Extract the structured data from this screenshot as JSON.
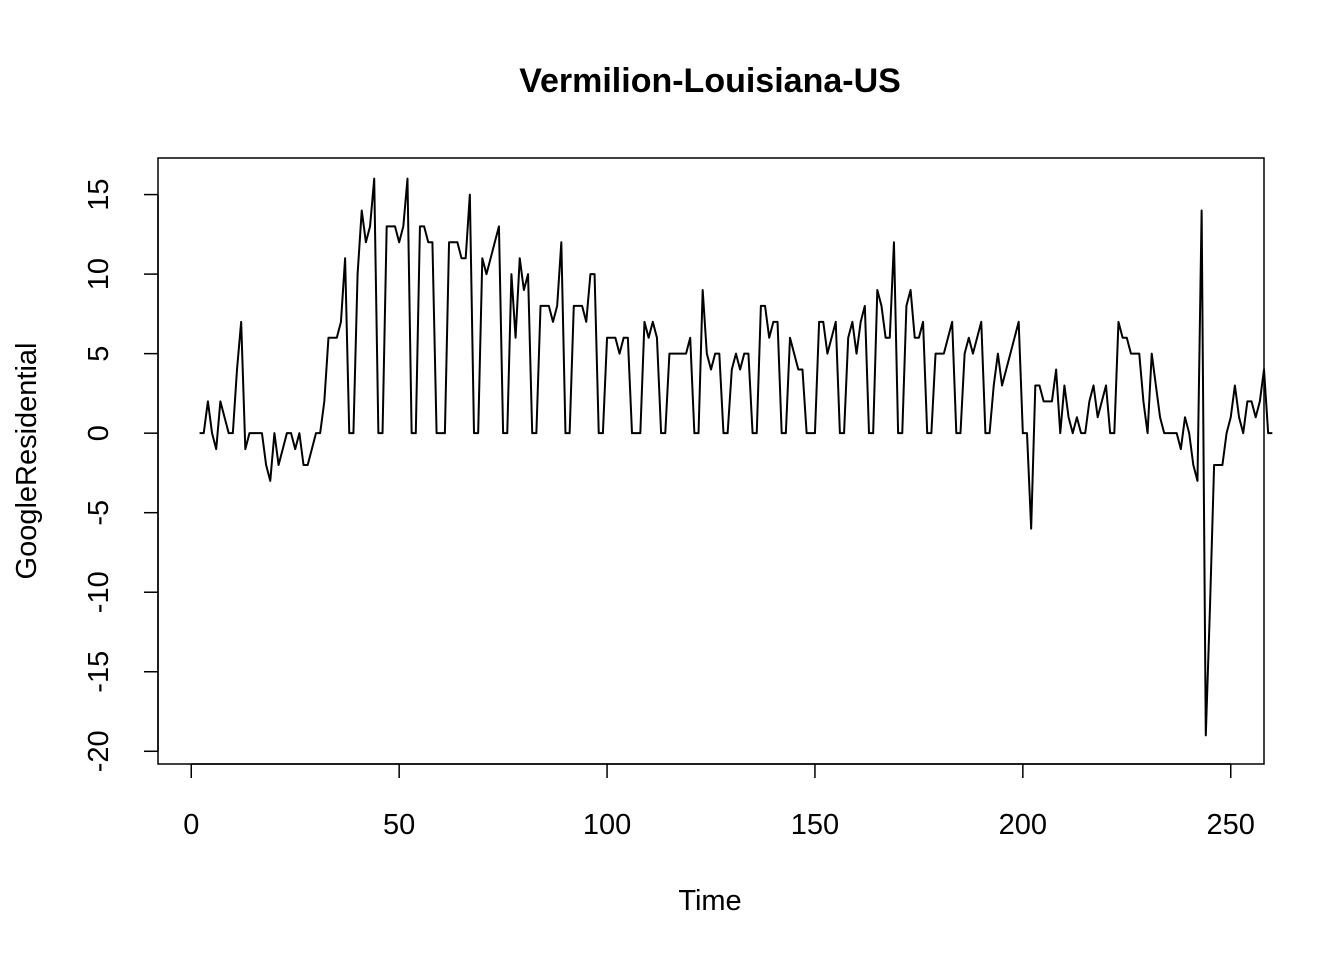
{
  "chart_data": {
    "type": "line",
    "title": "Vermilion-Louisiana-US",
    "xlabel": "Time",
    "ylabel": "GoogleResidential",
    "xlim": [
      -8,
      258
    ],
    "ylim": [
      -20.8,
      17.3
    ],
    "x_ticks": [
      0,
      50,
      100,
      150,
      200,
      250
    ],
    "y_ticks": [
      -20,
      -15,
      -10,
      -5,
      0,
      5,
      10,
      15
    ],
    "grid": false,
    "line_color": "#000000",
    "series": [
      {
        "x_start": 2,
        "values": [
          0,
          0,
          2,
          0,
          -1,
          2,
          1,
          0,
          0,
          4,
          7,
          -1,
          0,
          0,
          0,
          0,
          -2,
          -3,
          0,
          -2,
          -1,
          0,
          0,
          -1,
          0,
          -2,
          -2,
          -1,
          0,
          0,
          2,
          6,
          6,
          6,
          7,
          11,
          0,
          0,
          10,
          14,
          12,
          13,
          16,
          0,
          0,
          13,
          13,
          13,
          12,
          13,
          16,
          0,
          0,
          13,
          13,
          12,
          12,
          0,
          0,
          0,
          12,
          12,
          12,
          11,
          11,
          15,
          0,
          0,
          11,
          10,
          11,
          12,
          13,
          0,
          0,
          10,
          6,
          11,
          9,
          10,
          0,
          0,
          8,
          8,
          8,
          7,
          8,
          12,
          0,
          0,
          8,
          8,
          8,
          7,
          10,
          10,
          0,
          0,
          6,
          6,
          6,
          5,
          6,
          6,
          0,
          0,
          0,
          7,
          6,
          7,
          6,
          0,
          0,
          5,
          5,
          5,
          5,
          5,
          6,
          0,
          0,
          9,
          5,
          4,
          5,
          5,
          0,
          0,
          4,
          5,
          4,
          5,
          5,
          0,
          0,
          8,
          8,
          6,
          7,
          7,
          0,
          0,
          6,
          5,
          4,
          4,
          0,
          0,
          0,
          7,
          7,
          5,
          6,
          7,
          0,
          0,
          6,
          7,
          5,
          7,
          8,
          0,
          0,
          9,
          8,
          6,
          6,
          12,
          0,
          0,
          8,
          9,
          6,
          6,
          7,
          0,
          0,
          5,
          5,
          5,
          6,
          7,
          0,
          0,
          5,
          6,
          5,
          6,
          7,
          0,
          0,
          3,
          5,
          3,
          4,
          5,
          6,
          7,
          0,
          0,
          -6,
          3,
          3,
          2,
          2,
          2,
          4,
          0,
          3,
          1,
          0,
          1,
          0,
          0,
          2,
          3,
          1,
          2,
          3,
          0,
          0,
          7,
          6,
          6,
          5,
          5,
          5,
          2,
          0,
          5,
          3,
          1,
          0,
          0,
          0,
          0,
          -1,
          1,
          0,
          -2,
          -3,
          14,
          -19,
          -11,
          -2,
          -2,
          -2,
          0,
          1,
          3,
          1,
          0,
          2,
          2,
          1,
          2,
          4,
          0,
          0
        ]
      }
    ]
  }
}
